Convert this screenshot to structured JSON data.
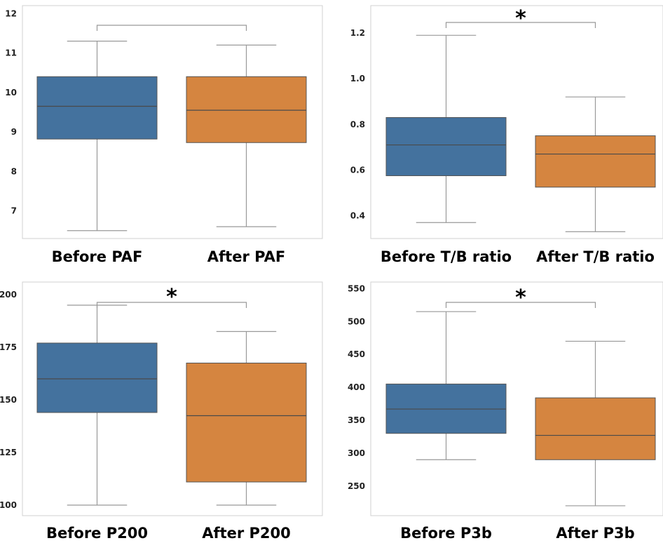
{
  "colors": {
    "before": "#44729e",
    "after": "#d58540",
    "whisker": "#999999",
    "frame": "#d0d0d0",
    "median": "#4a4a4a"
  },
  "chart_data": [
    {
      "type": "box",
      "categories": [
        "Before PAF",
        "After PAF"
      ],
      "ylim": [
        6.3,
        12.2
      ],
      "yticks": [
        7,
        8,
        9,
        10,
        11,
        12
      ],
      "boxes": [
        {
          "min": 6.5,
          "q1": 8.82,
          "median": 9.65,
          "q3": 10.4,
          "max": 11.3
        },
        {
          "min": 6.6,
          "q1": 8.73,
          "median": 9.55,
          "q3": 10.4,
          "max": 11.2
        }
      ],
      "significance": ""
    },
    {
      "type": "box",
      "categories": [
        "Before T/B ratio",
        "After T/B ratio"
      ],
      "ylim": [
        0.3,
        1.32
      ],
      "yticks": [
        "0.4",
        "0.6",
        "0.8",
        "1.0",
        "1.2"
      ],
      "boxes": [
        {
          "min": 0.37,
          "q1": 0.575,
          "median": 0.71,
          "q3": 0.83,
          "max": 1.19
        },
        {
          "min": 0.33,
          "q1": 0.525,
          "median": 0.67,
          "q3": 0.75,
          "max": 0.92
        }
      ],
      "significance": "*"
    },
    {
      "type": "box",
      "categories": [
        "Before P200",
        "After P200"
      ],
      "ylim": [
        95,
        206
      ],
      "yticks": [
        100,
        125,
        150,
        175,
        200
      ],
      "boxes": [
        {
          "min": 100,
          "q1": 144,
          "median": 160,
          "q3": 177,
          "max": 195
        },
        {
          "min": 100,
          "q1": 111,
          "median": 142.5,
          "q3": 167.5,
          "max": 182.5
        }
      ],
      "significance": "*"
    },
    {
      "type": "box",
      "categories": [
        "Before P3b",
        "After P3b"
      ],
      "ylim": [
        205,
        560
      ],
      "yticks": [
        250,
        300,
        350,
        400,
        450,
        500,
        550
      ],
      "boxes": [
        {
          "min": 290,
          "q1": 330,
          "median": 367,
          "q3": 405,
          "max": 515
        },
        {
          "min": 220,
          "q1": 290,
          "median": 327,
          "q3": 384,
          "max": 470
        }
      ],
      "significance": "*"
    }
  ]
}
